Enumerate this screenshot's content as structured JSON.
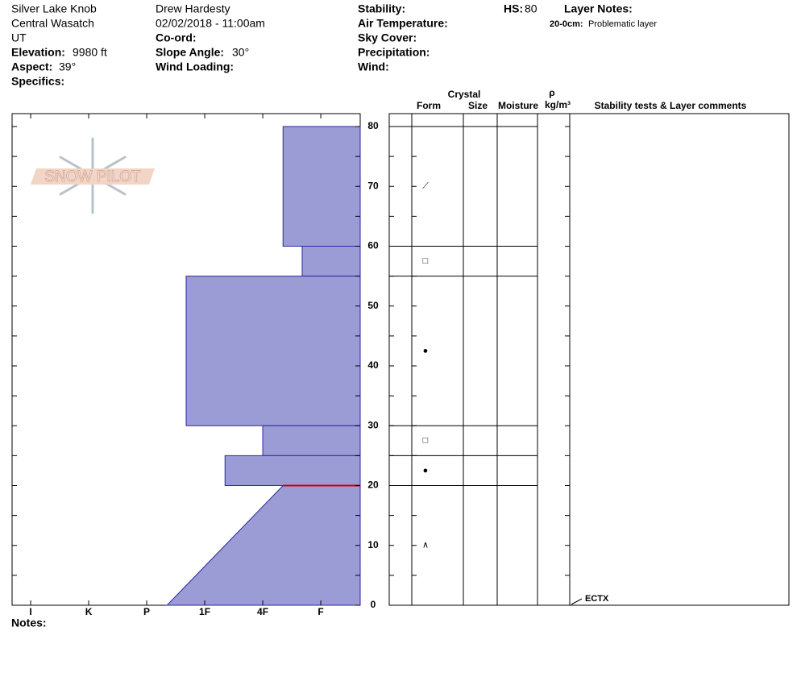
{
  "header": {
    "site": "Silver Lake Knob",
    "range": "Central Wasatch",
    "state": "UT",
    "elevation_label": "Elevation:",
    "elevation": "9980 ft",
    "aspect_label": "Aspect:",
    "aspect": "39°",
    "specifics_label": "Specifics:",
    "observer": "Drew Hardesty",
    "date": "02/02/2018 - 11:00am",
    "coord_label": "Co-ord:",
    "slope_label": "Slope Angle:",
    "slope": "30°",
    "wind_loading_label": "Wind Loading:",
    "stability_label": "Stability:",
    "air_temp_label": "Air Temperature:",
    "sky_label": "Sky Cover:",
    "precip_label": "Precipitation:",
    "wind_label": "Wind:",
    "hs_label": "HS:",
    "hs": 80,
    "layer_notes_label": "Layer Notes:",
    "layer_note_range": "20-0cm:",
    "layer_note": "Problematic layer"
  },
  "notes_label": "Notes:",
  "logo": "SNOW PILOT",
  "table": {
    "crystal": "Crystal",
    "form": "Form",
    "size": "Size",
    "moisture": "Moisture",
    "rho": "ρ",
    "density_unit": "kg/m³",
    "comments": "Stability tests & Layer comments"
  },
  "chart_data": {
    "type": "snow-profile",
    "color": "#9b9bd6",
    "edge_color": "#2a2aa0",
    "problem_color": "#cc0000",
    "ylim": [
      0,
      80
    ],
    "yticks": [
      0,
      10,
      20,
      30,
      40,
      50,
      60,
      70,
      80
    ],
    "minor_yticks": [
      5,
      15,
      25,
      35,
      45,
      55,
      65,
      75
    ],
    "xlim": [
      6.32,
      0.32
    ],
    "xticks": [
      {
        "value": 6,
        "label": "I"
      },
      {
        "value": 5,
        "label": "K"
      },
      {
        "value": 4,
        "label": "P"
      },
      {
        "value": 3,
        "label": "1F"
      },
      {
        "value": 2,
        "label": "4F"
      },
      {
        "value": 1,
        "label": "F"
      }
    ],
    "layers": [
      {
        "top": 80,
        "bottom": 60,
        "hardness": 1.65,
        "form": "⟋"
      },
      {
        "top": 60,
        "bottom": 55,
        "hardness": 1.32,
        "form": "□"
      },
      {
        "top": 55,
        "bottom": 30,
        "hardness": 3.32,
        "form": "●"
      },
      {
        "top": 30,
        "bottom": 25,
        "hardness": 2.0,
        "form": "□"
      },
      {
        "top": 25,
        "bottom": 20,
        "hardness": 2.65,
        "form": "●"
      },
      {
        "top": 20,
        "bottom": 0,
        "hardness": 1.65,
        "hardness_bottom": 3.65,
        "form": "∧",
        "problematic": true
      }
    ],
    "tests": [
      {
        "name": "ECTX",
        "depth": 0
      }
    ]
  }
}
